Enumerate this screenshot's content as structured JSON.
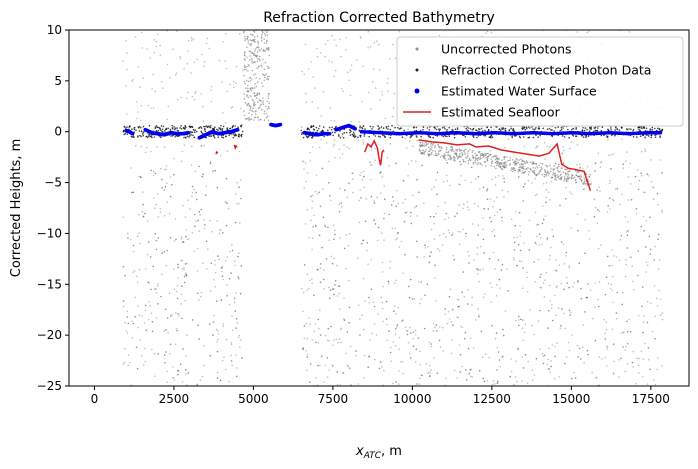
{
  "chart_data": {
    "type": "scatter",
    "title": "Refraction Corrected Bathymetry",
    "xlabel_main": "x",
    "xlabel_sub": "ATC",
    "xlabel_unit": ", m",
    "ylabel": "Corrected Heights, m",
    "xlim": [
      -800,
      18700
    ],
    "ylim": [
      -25,
      10
    ],
    "xticks": [
      0,
      2500,
      5000,
      7500,
      10000,
      12500,
      15000,
      17500
    ],
    "yticks": [
      10,
      5,
      0,
      -5,
      -10,
      -15,
      -20,
      -25
    ],
    "grid": false,
    "legend_position": "top-right",
    "legend": [
      {
        "label": "Uncorrected Photons",
        "marker": "dot-small",
        "color": "#8c8c8c"
      },
      {
        "label": "Refraction Corrected Photon Data",
        "marker": "dot-small",
        "color": "#222222"
      },
      {
        "label": "Estimated Water Surface",
        "marker": "dot",
        "color": "#0000ee"
      },
      {
        "label": "Estimated Seafloor",
        "marker": "line",
        "color": "#e02020"
      }
    ],
    "series": [
      {
        "name": "Estimated Water Surface",
        "segments": [
          {
            "x": [
              1000,
              1100,
              1200
            ],
            "y": [
              0.1,
              0.0,
              -0.2
            ]
          },
          {
            "x": [
              1600,
              1800,
              2000,
              2200,
              2400,
              2600,
              2800,
              2950
            ],
            "y": [
              0.2,
              -0.1,
              -0.2,
              -0.3,
              -0.1,
              -0.2,
              -0.2,
              -0.1
            ]
          },
          {
            "x": [
              3300,
              3500,
              3700,
              3900,
              4100,
              4300,
              4500
            ],
            "y": [
              -0.6,
              -0.3,
              0.0,
              -0.2,
              -0.1,
              0.0,
              0.2
            ]
          },
          {
            "x": [
              5550,
              5700,
              5850
            ],
            "y": [
              0.7,
              0.6,
              0.7
            ]
          },
          {
            "x": [
              6600,
              6800,
              7000,
              7200,
              7400
            ],
            "y": [
              -0.1,
              -0.2,
              -0.3,
              -0.2,
              -0.2
            ]
          },
          {
            "x": [
              7600,
              7800,
              8000,
              8200
            ],
            "y": [
              0.2,
              0.4,
              0.6,
              0.3
            ]
          },
          {
            "x": [
              8400,
              9000,
              9600,
              10200,
              10800,
              11400,
              12000,
              12600,
              13200,
              13800,
              14400,
              15000,
              15600,
              16200,
              16800,
              17400,
              17800
            ],
            "y": [
              0.0,
              -0.1,
              -0.2,
              -0.1,
              -0.2,
              -0.1,
              -0.2,
              -0.1,
              -0.2,
              -0.1,
              -0.2,
              -0.1,
              -0.2,
              -0.1,
              -0.2,
              -0.1,
              -0.1
            ]
          }
        ]
      },
      {
        "name": "Estimated Seafloor",
        "segments": [
          {
            "x": [
              3820,
              3850,
              3880
            ],
            "y": [
              -2.2,
              -2.0,
              -2.1
            ]
          },
          {
            "x": [
              4400,
              4430,
              4460,
              4490
            ],
            "y": [
              -1.3,
              -1.6,
              -1.4,
              -1.5
            ]
          },
          {
            "x": [
              8500,
              8600,
              8700,
              8800,
              8900,
              8950,
              9000,
              9050,
              9100
            ],
            "y": [
              -2.0,
              -1.2,
              -1.5,
              -0.9,
              -1.6,
              -2.6,
              -3.3,
              -2.0,
              -1.8
            ]
          },
          {
            "x": [
              10200,
              10600,
              11000,
              11400,
              11800,
              12000,
              12400,
              12800,
              13200,
              13600,
              14000,
              14300,
              14550,
              14700,
              14900,
              15100,
              15400,
              15600
            ],
            "y": [
              -0.8,
              -1.0,
              -1.1,
              -1.3,
              -1.2,
              -1.5,
              -1.4,
              -1.8,
              -2.0,
              -2.2,
              -2.4,
              -2.1,
              -1.2,
              -3.2,
              -3.6,
              -3.7,
              -3.9,
              -5.8
            ]
          }
        ]
      }
    ]
  }
}
